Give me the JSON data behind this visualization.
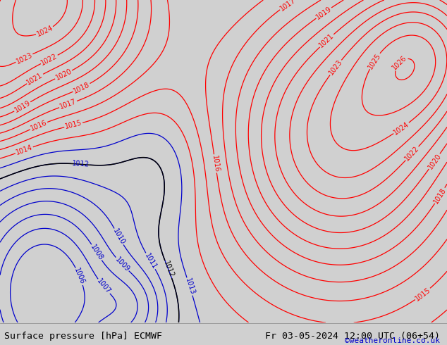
{
  "title_left": "Surface pressure [hPa] ECMWF",
  "title_right": "Fr 03-05-2024 12:00 UTC (06+54)",
  "credit": "©weatheronline.co.uk",
  "bg_color": "#d0d0d0",
  "land_color": "#c8e8b0",
  "sea_color": "#d0d0d0",
  "coastline_color": "#000000",
  "red_contour_color": "#ff0000",
  "blue_contour_color": "#0000cc",
  "black_contour_color": "#000000",
  "text_color": "#000000",
  "credit_color": "#0000cc",
  "lon_min": -10,
  "lon_max": 40,
  "lat_min": 52,
  "lat_max": 73,
  "pressure_base": 1013.0,
  "blue_levels": [
    1006,
    1007,
    1008,
    1009,
    1010,
    1011,
    1012,
    1013
  ],
  "black_levels": [
    1012
  ],
  "red_levels": [
    1014,
    1015,
    1016,
    1017,
    1018,
    1019,
    1020,
    1021,
    1022,
    1023,
    1024,
    1025,
    1026
  ],
  "font_size_contour": 7,
  "font_size_bottom": 9.5
}
